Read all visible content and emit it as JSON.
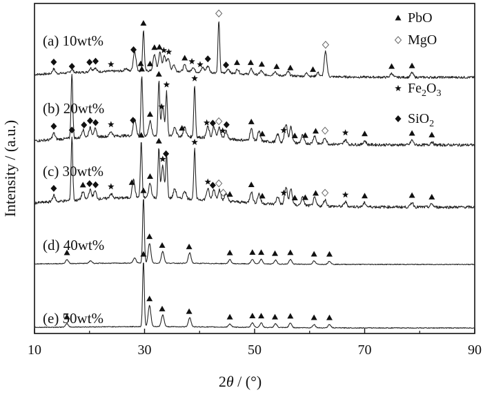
{
  "chart_data": {
    "type": "line",
    "title": "",
    "xlabel_prefix": "2",
    "xlabel_symbol": "θ",
    "xlabel_suffix": " / (°)",
    "ylabel": "Intensity / (a.u.)",
    "xlim": [
      10,
      90
    ],
    "x_ticks": [
      "10",
      "30",
      "50",
      "70",
      "90"
    ],
    "y_ticks_shown": false,
    "grid": false,
    "legend_position": "top-right",
    "legend": [
      {
        "marker": "triangle",
        "label": "PbO"
      },
      {
        "marker": "diamond-open",
        "label": "MgO"
      },
      {
        "marker": "star",
        "label": "Fe",
        "sub": "2",
        "label2": "O",
        "sub2": "3"
      },
      {
        "marker": "diamond",
        "label": "SiO",
        "sub": "2"
      }
    ],
    "series": [
      {
        "label": "(a) 10wt%",
        "baseline": 0.0,
        "background": 0.1,
        "peaks": [
          [
            13.5,
            0.07
          ],
          [
            16.8,
            0.05
          ],
          [
            20.2,
            0.06
          ],
          [
            21.0,
            0.06
          ],
          [
            26.6,
            0.04
          ],
          [
            28.2,
            0.3
          ],
          [
            29.8,
            0.62
          ],
          [
            31.8,
            0.25
          ],
          [
            32.8,
            0.28
          ],
          [
            33.6,
            0.22
          ],
          [
            34.3,
            0.2
          ],
          [
            35.3,
            0.1
          ],
          [
            37.3,
            0.1
          ],
          [
            38.8,
            0.07
          ],
          [
            40.6,
            0.07
          ],
          [
            41.5,
            0.1
          ],
          [
            43.5,
            0.8
          ],
          [
            45.2,
            0.07
          ],
          [
            46.9,
            0.07
          ],
          [
            49.4,
            0.08
          ],
          [
            51.2,
            0.06
          ],
          [
            53.7,
            0.06
          ],
          [
            56.1,
            0.06
          ],
          [
            59.5,
            0.05
          ],
          [
            61.5,
            0.06
          ],
          [
            62.9,
            0.38
          ],
          [
            74.9,
            0.06
          ],
          [
            78.6,
            0.07
          ]
        ],
        "markers": [
          [
            29.8,
            "triangle"
          ],
          [
            43.5,
            "diamond-open"
          ],
          [
            62.9,
            "diamond-open"
          ],
          [
            28.0,
            "diamond"
          ],
          [
            31.8,
            "triangle"
          ],
          [
            32.7,
            "triangle"
          ],
          [
            33.5,
            "star"
          ],
          [
            34.4,
            "star"
          ],
          [
            37.3,
            "triangle"
          ],
          [
            38.6,
            "star"
          ],
          [
            40.1,
            "star"
          ],
          [
            41.5,
            "diamond"
          ],
          [
            44.8,
            "diamond"
          ],
          [
            46.8,
            "triangle"
          ],
          [
            49.3,
            "triangle"
          ],
          [
            51.3,
            "triangle"
          ],
          [
            54.0,
            "triangle"
          ],
          [
            56.5,
            "triangle"
          ],
          [
            60.6,
            "triangle"
          ],
          [
            74.9,
            "triangle"
          ],
          [
            78.6,
            "triangle"
          ],
          [
            13.5,
            "diamond"
          ],
          [
            20.0,
            "diamond"
          ],
          [
            21.1,
            "diamond"
          ],
          [
            23.9,
            "star"
          ],
          [
            29.3,
            "triangle"
          ],
          [
            31.0,
            "triangle"
          ]
        ]
      },
      {
        "label": "(b) 20wt%",
        "baseline": 0.0,
        "background": 0.12,
        "peaks": [
          [
            13.5,
            0.08
          ],
          [
            16.8,
            0.82
          ],
          [
            18.8,
            0.1
          ],
          [
            20.1,
            0.12
          ],
          [
            21.0,
            0.1
          ],
          [
            23.9,
            0.06
          ],
          [
            28.2,
            0.22
          ],
          [
            29.5,
            0.75
          ],
          [
            31.0,
            0.18
          ],
          [
            32.6,
            0.68
          ],
          [
            33.3,
            0.38
          ],
          [
            34.0,
            0.55
          ],
          [
            35.5,
            0.12
          ],
          [
            37.3,
            0.12
          ],
          [
            39.1,
            0.65
          ],
          [
            41.5,
            0.14
          ],
          [
            42.6,
            0.14
          ],
          [
            43.6,
            0.14
          ],
          [
            44.8,
            0.1
          ],
          [
            49.4,
            0.15
          ],
          [
            50.8,
            0.12
          ],
          [
            54.2,
            0.1
          ],
          [
            55.7,
            0.24
          ],
          [
            56.6,
            0.2
          ],
          [
            58.7,
            0.1
          ],
          [
            60.9,
            0.1
          ],
          [
            62.8,
            0.08
          ],
          [
            66.5,
            0.06
          ],
          [
            70.0,
            0.05
          ],
          [
            78.6,
            0.06
          ],
          [
            82.2,
            0.04
          ]
        ],
        "markers": [
          [
            16.8,
            "diamond"
          ],
          [
            29.5,
            "triangle"
          ],
          [
            32.6,
            "triangle"
          ],
          [
            34.0,
            "star"
          ],
          [
            39.1,
            "star"
          ],
          [
            13.5,
            "diamond"
          ],
          [
            19.0,
            "diamond"
          ],
          [
            20.1,
            "diamond"
          ],
          [
            21.1,
            "diamond"
          ],
          [
            23.9,
            "star"
          ],
          [
            27.9,
            "diamond"
          ],
          [
            31.0,
            "triangle"
          ],
          [
            33.1,
            "star"
          ],
          [
            36.8,
            "triangle"
          ],
          [
            41.3,
            "star"
          ],
          [
            42.4,
            "diamond"
          ],
          [
            43.5,
            "diamond-open"
          ],
          [
            44.2,
            "star"
          ],
          [
            44.9,
            "diamond"
          ],
          [
            49.4,
            "triangle"
          ],
          [
            51.4,
            "triangle"
          ],
          [
            55.3,
            "star"
          ],
          [
            57.3,
            "triangle"
          ],
          [
            59.2,
            "triangle"
          ],
          [
            61.1,
            "triangle"
          ],
          [
            62.8,
            "diamond-open"
          ],
          [
            66.5,
            "star"
          ],
          [
            70.0,
            "triangle"
          ],
          [
            78.6,
            "triangle"
          ],
          [
            82.2,
            "triangle"
          ]
        ]
      },
      {
        "label": "(c) 30wt%",
        "baseline": 0.0,
        "background": 0.12,
        "peaks": [
          [
            13.5,
            0.08
          ],
          [
            16.8,
            0.8
          ],
          [
            18.8,
            0.1
          ],
          [
            20.1,
            0.12
          ],
          [
            21.0,
            0.1
          ],
          [
            23.9,
            0.06
          ],
          [
            28.0,
            0.22
          ],
          [
            29.4,
            0.7
          ],
          [
            31.0,
            0.18
          ],
          [
            32.6,
            0.62
          ],
          [
            33.3,
            0.4
          ],
          [
            34.0,
            0.55
          ],
          [
            35.5,
            0.12
          ],
          [
            37.3,
            0.1
          ],
          [
            39.1,
            0.63
          ],
          [
            41.5,
            0.14
          ],
          [
            42.6,
            0.14
          ],
          [
            43.6,
            0.14
          ],
          [
            44.8,
            0.1
          ],
          [
            49.4,
            0.14
          ],
          [
            50.8,
            0.12
          ],
          [
            54.2,
            0.1
          ],
          [
            55.7,
            0.22
          ],
          [
            56.6,
            0.2
          ],
          [
            58.7,
            0.1
          ],
          [
            60.9,
            0.1
          ],
          [
            62.8,
            0.08
          ],
          [
            66.5,
            0.06
          ],
          [
            70.0,
            0.05
          ],
          [
            78.6,
            0.06
          ],
          [
            82.2,
            0.04
          ]
        ],
        "markers": [
          [
            16.8,
            "diamond"
          ],
          [
            29.4,
            "triangle"
          ],
          [
            32.6,
            "triangle"
          ],
          [
            33.9,
            "diamond"
          ],
          [
            39.1,
            "star"
          ],
          [
            13.5,
            "diamond"
          ],
          [
            18.8,
            "triangle"
          ],
          [
            20.0,
            "diamond"
          ],
          [
            21.1,
            "diamond"
          ],
          [
            23.9,
            "star"
          ],
          [
            27.7,
            "triangle"
          ],
          [
            31.0,
            "triangle"
          ],
          [
            33.3,
            "star"
          ],
          [
            41.5,
            "star"
          ],
          [
            42.4,
            "diamond"
          ],
          [
            43.5,
            "diamond-open"
          ],
          [
            44.3,
            "diamond-open"
          ],
          [
            45.5,
            "triangle"
          ],
          [
            49.4,
            "triangle"
          ],
          [
            51.4,
            "triangle"
          ],
          [
            55.3,
            "star"
          ],
          [
            57.3,
            "triangle"
          ],
          [
            59.2,
            "triangle"
          ],
          [
            61.1,
            "triangle"
          ],
          [
            62.8,
            "diamond-open"
          ],
          [
            66.5,
            "star"
          ],
          [
            70.0,
            "triangle"
          ],
          [
            78.6,
            "triangle"
          ],
          [
            82.2,
            "triangle"
          ]
        ]
      },
      {
        "label": "(d) 40wt%",
        "baseline": 0.0,
        "background": 0.02,
        "peaks": [
          [
            15.9,
            0.06
          ],
          [
            20.2,
            0.04
          ],
          [
            28.2,
            0.08
          ],
          [
            29.8,
            1.0
          ],
          [
            30.9,
            0.3
          ],
          [
            33.3,
            0.18
          ],
          [
            38.2,
            0.16
          ],
          [
            45.5,
            0.06
          ],
          [
            49.6,
            0.07
          ],
          [
            51.2,
            0.07
          ],
          [
            53.8,
            0.06
          ],
          [
            56.5,
            0.07
          ],
          [
            60.8,
            0.05
          ],
          [
            63.6,
            0.05
          ]
        ],
        "markers": [
          [
            15.9,
            "triangle"
          ],
          [
            29.8,
            "triangle"
          ],
          [
            30.9,
            "triangle"
          ],
          [
            33.2,
            "triangle"
          ],
          [
            38.1,
            "triangle"
          ],
          [
            45.5,
            "triangle"
          ],
          [
            49.6,
            "triangle"
          ],
          [
            51.2,
            "triangle"
          ],
          [
            53.7,
            "triangle"
          ],
          [
            56.5,
            "triangle"
          ],
          [
            60.8,
            "triangle"
          ],
          [
            63.6,
            "triangle"
          ]
        ]
      },
      {
        "label": "(e) 50wt%",
        "baseline": 0.0,
        "background": 0.02,
        "peaks": [
          [
            15.9,
            0.05
          ],
          [
            29.8,
            1.0
          ],
          [
            30.9,
            0.32
          ],
          [
            33.3,
            0.18
          ],
          [
            38.2,
            0.14
          ],
          [
            45.5,
            0.05
          ],
          [
            49.6,
            0.07
          ],
          [
            51.2,
            0.07
          ],
          [
            53.8,
            0.06
          ],
          [
            56.5,
            0.07
          ],
          [
            60.8,
            0.05
          ],
          [
            63.6,
            0.05
          ]
        ],
        "markers": [
          [
            15.9,
            "triangle"
          ],
          [
            29.8,
            "triangle"
          ],
          [
            30.9,
            "triangle"
          ],
          [
            33.2,
            "triangle"
          ],
          [
            38.1,
            "triangle"
          ],
          [
            45.5,
            "triangle"
          ],
          [
            49.6,
            "triangle"
          ],
          [
            51.2,
            "triangle"
          ],
          [
            53.7,
            "triangle"
          ],
          [
            56.5,
            "triangle"
          ],
          [
            60.8,
            "triangle"
          ],
          [
            63.6,
            "triangle"
          ]
        ]
      }
    ]
  }
}
